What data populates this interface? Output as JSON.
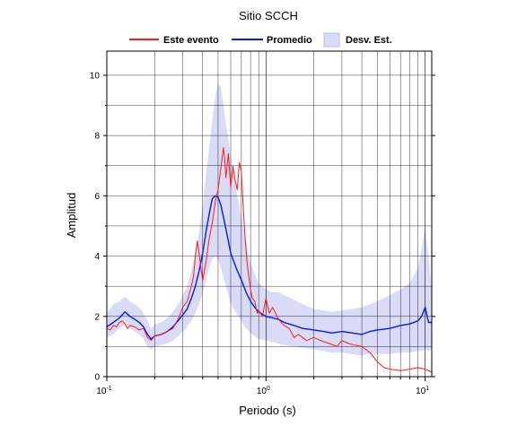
{
  "chart_data": {
    "type": "line",
    "title": "Sitio SCCH",
    "xlabel": "Periodo (s)",
    "ylabel": "Amplitud",
    "x_scale": "log",
    "xlim": [
      0.1,
      11
    ],
    "ylim": [
      0,
      10.8
    ],
    "grid": true,
    "legend_position": "top",
    "x_ticks": [
      {
        "base": "10",
        "exp": "-1"
      },
      {
        "base": "10",
        "exp": "0"
      },
      {
        "base": "10",
        "exp": "1"
      }
    ],
    "y_ticks": [
      "0",
      "2",
      "4",
      "6",
      "8",
      "10"
    ],
    "legend": {
      "event_label": "Este evento",
      "mean_label": "Promedio",
      "std_label": "Desv. Est."
    },
    "colors": {
      "event": "#ff1a1a",
      "mean": "#0019ff",
      "std_fill": "#d9dbf7",
      "std_border": "#b9bcef"
    },
    "series": [
      {
        "name": "Este evento",
        "x": [
          0.1,
          0.105,
          0.11,
          0.115,
          0.12,
          0.125,
          0.13,
          0.135,
          0.14,
          0.15,
          0.16,
          0.17,
          0.18,
          0.19,
          0.2,
          0.22,
          0.24,
          0.26,
          0.28,
          0.3,
          0.32,
          0.34,
          0.35,
          0.36,
          0.37,
          0.38,
          0.39,
          0.4,
          0.42,
          0.44,
          0.46,
          0.48,
          0.5,
          0.52,
          0.54,
          0.55,
          0.56,
          0.58,
          0.6,
          0.62,
          0.64,
          0.66,
          0.68,
          0.7,
          0.72,
          0.74,
          0.76,
          0.78,
          0.8,
          0.82,
          0.85,
          0.88,
          0.9,
          0.95,
          1.0,
          1.05,
          1.1,
          1.2,
          1.3,
          1.4,
          1.5,
          1.6,
          1.8,
          2.0,
          2.2,
          2.5,
          2.8,
          3.0,
          3.3,
          3.6,
          4.0,
          4.5,
          5.0,
          5.5,
          6.0,
          7.0,
          8.0,
          9.0,
          10.0,
          11.0
        ],
        "y": [
          1.6,
          1.55,
          1.7,
          1.65,
          1.8,
          1.85,
          1.75,
          1.6,
          1.7,
          1.65,
          1.55,
          1.6,
          1.3,
          1.2,
          1.35,
          1.4,
          1.5,
          1.6,
          1.9,
          2.3,
          2.5,
          3.0,
          3.3,
          4.0,
          4.5,
          4.1,
          3.6,
          3.2,
          3.8,
          4.6,
          5.1,
          5.8,
          6.2,
          6.9,
          7.6,
          7.2,
          6.6,
          7.4,
          6.3,
          7.0,
          6.5,
          6.2,
          7.1,
          6.8,
          5.6,
          4.6,
          3.8,
          3.3,
          2.9,
          2.6,
          2.5,
          2.1,
          2.2,
          2.0,
          2.6,
          2.1,
          2.3,
          1.9,
          1.7,
          1.6,
          1.3,
          1.4,
          1.2,
          1.3,
          1.2,
          1.1,
          1.0,
          1.2,
          1.1,
          1.05,
          1.0,
          0.8,
          0.5,
          0.3,
          0.25,
          0.2,
          0.25,
          0.3,
          0.25,
          0.15
        ]
      },
      {
        "name": "Promedio",
        "x": [
          0.1,
          0.11,
          0.12,
          0.13,
          0.14,
          0.15,
          0.16,
          0.17,
          0.18,
          0.19,
          0.2,
          0.22,
          0.24,
          0.26,
          0.28,
          0.3,
          0.32,
          0.34,
          0.36,
          0.38,
          0.4,
          0.42,
          0.44,
          0.46,
          0.48,
          0.5,
          0.52,
          0.54,
          0.56,
          0.58,
          0.6,
          0.65,
          0.7,
          0.75,
          0.8,
          0.85,
          0.9,
          1.0,
          1.1,
          1.2,
          1.3,
          1.5,
          1.7,
          2.0,
          2.3,
          2.6,
          3.0,
          3.5,
          4.0,
          4.5,
          5.0,
          6.0,
          7.0,
          8.0,
          9.0,
          9.5,
          10.0,
          10.5,
          11.0
        ],
        "y": [
          1.65,
          1.8,
          1.95,
          2.15,
          2.0,
          1.9,
          1.8,
          1.65,
          1.4,
          1.25,
          1.35,
          1.4,
          1.5,
          1.65,
          1.85,
          2.05,
          2.25,
          2.6,
          3.0,
          3.5,
          4.1,
          4.8,
          5.4,
          5.9,
          6.0,
          5.95,
          5.7,
          5.3,
          4.9,
          4.5,
          4.1,
          3.6,
          3.2,
          2.8,
          2.5,
          2.3,
          2.15,
          2.0,
          1.95,
          1.9,
          1.8,
          1.7,
          1.6,
          1.55,
          1.5,
          1.45,
          1.5,
          1.45,
          1.4,
          1.5,
          1.55,
          1.6,
          1.7,
          1.75,
          1.85,
          2.0,
          2.3,
          1.8,
          1.8
        ]
      },
      {
        "name": "Desv. Est.",
        "x": [
          0.1,
          0.11,
          0.12,
          0.13,
          0.14,
          0.15,
          0.16,
          0.17,
          0.18,
          0.19,
          0.2,
          0.22,
          0.24,
          0.26,
          0.28,
          0.3,
          0.32,
          0.34,
          0.36,
          0.38,
          0.4,
          0.42,
          0.44,
          0.46,
          0.48,
          0.5,
          0.52,
          0.54,
          0.56,
          0.58,
          0.6,
          0.65,
          0.7,
          0.75,
          0.8,
          0.85,
          0.9,
          1.0,
          1.1,
          1.2,
          1.3,
          1.5,
          1.7,
          2.0,
          2.3,
          2.6,
          3.0,
          3.5,
          4.0,
          4.5,
          5.0,
          6.0,
          7.0,
          8.0,
          9.0,
          9.5,
          10.0,
          10.5,
          11.0
        ],
        "lower": [
          1.3,
          1.4,
          1.6,
          1.75,
          1.6,
          1.5,
          1.4,
          1.25,
          1.0,
          0.9,
          1.0,
          1.05,
          1.1,
          1.2,
          1.35,
          1.5,
          1.65,
          1.85,
          2.1,
          2.4,
          2.8,
          3.2,
          3.6,
          3.9,
          4.0,
          3.9,
          3.6,
          3.3,
          3.0,
          2.7,
          2.45,
          2.1,
          1.85,
          1.6,
          1.45,
          1.35,
          1.25,
          1.2,
          1.15,
          1.1,
          1.05,
          1.0,
          0.95,
          0.9,
          0.85,
          0.8,
          0.8,
          0.75,
          0.7,
          0.75,
          0.75,
          0.75,
          0.8,
          0.8,
          0.85,
          0.85,
          0.9,
          0.85,
          0.9
        ],
        "upper": [
          2.1,
          2.4,
          2.5,
          2.65,
          2.5,
          2.4,
          2.3,
          2.1,
          1.85,
          1.6,
          1.75,
          1.8,
          1.95,
          2.15,
          2.4,
          2.7,
          3.0,
          3.5,
          4.1,
          4.8,
          5.7,
          6.7,
          7.6,
          8.5,
          9.3,
          9.7,
          9.6,
          9.0,
          8.4,
          7.9,
          7.3,
          6.2,
          5.3,
          4.5,
          3.8,
          3.4,
          3.1,
          2.9,
          2.8,
          2.8,
          2.7,
          2.55,
          2.4,
          2.25,
          2.2,
          2.15,
          2.2,
          2.25,
          2.3,
          2.4,
          2.5,
          2.7,
          2.9,
          3.1,
          3.6,
          4.2,
          5.0,
          4.0,
          2.8
        ]
      }
    ]
  }
}
